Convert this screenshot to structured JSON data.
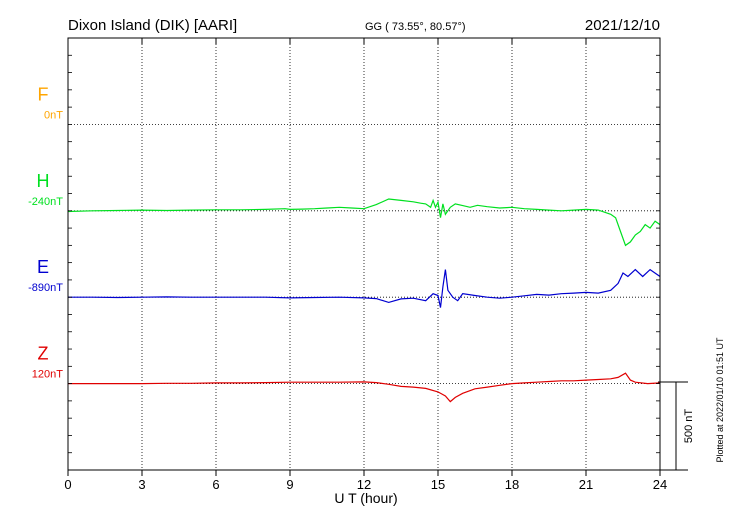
{
  "header": {
    "station": "Dixon Island (DIK)  [AARI]",
    "coords": "GG ( 73.55°,  80.57°)",
    "date": "2021/12/10"
  },
  "plotted_note": "Plotted at 2022/01/10 01:51  UT",
  "scale_label": "500 nT",
  "chart_data": {
    "type": "line",
    "xlabel": "U T (hour)",
    "xlim": [
      0,
      24
    ],
    "xticks": [
      0,
      3,
      6,
      9,
      12,
      15,
      18,
      21,
      24
    ],
    "grid": true,
    "nt_per_row_interval": 250,
    "series": [
      {
        "name": "F",
        "baseline_label": "0nT",
        "color": "#ffa500",
        "x": [],
        "y": []
      },
      {
        "name": "H",
        "baseline_label": "-240nT",
        "color": "#00e020",
        "x": [
          0,
          1,
          2,
          3,
          4,
          5,
          6,
          7,
          8,
          8.8,
          9,
          9.5,
          10,
          10.5,
          11,
          11.5,
          12,
          12.5,
          13,
          13.5,
          14,
          14.3,
          14.5,
          14.7,
          14.8,
          14.9,
          15.0,
          15.1,
          15.2,
          15.3,
          15.5,
          15.7,
          16.0,
          16.3,
          16.6,
          17,
          17.5,
          18,
          18.5,
          19,
          19.5,
          20,
          20.5,
          21,
          21.5,
          22,
          22.2,
          22.4,
          22.6,
          22.8,
          23.0,
          23.2,
          23.4,
          23.6,
          23.8,
          24
        ],
        "y": [
          -2,
          0,
          1,
          2,
          1,
          2,
          3,
          3,
          4,
          6,
          4,
          5,
          6,
          8,
          10,
          8,
          6,
          18,
          34,
          30,
          26,
          22,
          20,
          10,
          30,
          10,
          25,
          -20,
          20,
          -10,
          10,
          20,
          15,
          10,
          16,
          12,
          8,
          10,
          6,
          4,
          2,
          0,
          2,
          4,
          2,
          -10,
          -20,
          -60,
          -100,
          -90,
          -70,
          -60,
          -40,
          -50,
          -30,
          -40
        ]
      },
      {
        "name": "E",
        "baseline_label": "-890nT",
        "color": "#0000d0",
        "x": [
          0,
          1,
          2,
          3,
          4,
          5,
          6,
          7,
          8,
          9,
          10,
          11,
          12,
          12.5,
          13,
          13.5,
          14,
          14.5,
          14.8,
          15.0,
          15.1,
          15.2,
          15.3,
          15.4,
          15.6,
          15.8,
          16.0,
          16.5,
          17,
          17.5,
          18,
          18.5,
          19,
          19.5,
          20,
          20.5,
          21,
          21.5,
          22,
          22.3,
          22.5,
          22.7,
          23.0,
          23.3,
          23.6,
          24
        ],
        "y": [
          0,
          0,
          -1,
          0,
          1,
          0,
          0,
          0,
          0,
          -2,
          -1,
          0,
          -2,
          -4,
          -15,
          -5,
          -3,
          -10,
          10,
          5,
          -30,
          30,
          80,
          20,
          0,
          -10,
          10,
          5,
          0,
          -3,
          0,
          4,
          8,
          6,
          10,
          12,
          14,
          12,
          20,
          40,
          70,
          60,
          80,
          60,
          80,
          60
        ]
      },
      {
        "name": "Z",
        "baseline_label": "120nT",
        "color": "#e00000",
        "x": [
          0,
          1,
          2,
          3,
          4,
          5,
          6,
          7,
          8,
          9,
          10,
          11,
          12,
          12.5,
          13,
          13.5,
          14,
          14.5,
          15.0,
          15.3,
          15.5,
          15.7,
          16.0,
          16.5,
          17,
          17.5,
          18,
          18.5,
          19,
          19.5,
          20,
          20.5,
          21,
          21.5,
          22,
          22.3,
          22.6,
          22.8,
          23.0,
          23.5,
          24
        ],
        "y": [
          0,
          0,
          0,
          0,
          1,
          1,
          2,
          2,
          3,
          4,
          4,
          4,
          5,
          3,
          -2,
          -8,
          -10,
          -14,
          -24,
          -36,
          -52,
          -40,
          -28,
          -15,
          -10,
          -5,
          0,
          2,
          4,
          6,
          8,
          8,
          10,
          12,
          14,
          18,
          30,
          10,
          4,
          0,
          2
        ]
      }
    ]
  }
}
